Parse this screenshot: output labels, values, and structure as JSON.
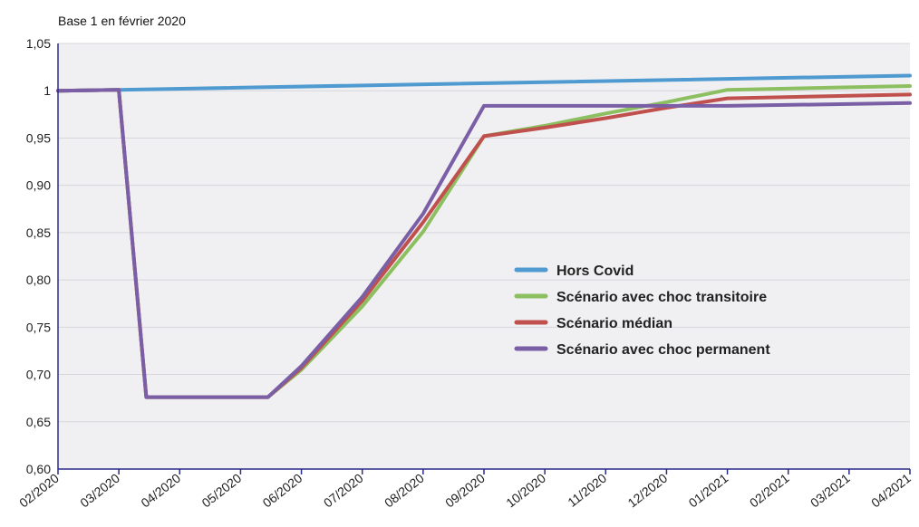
{
  "chart_data": {
    "type": "line",
    "subtitle": "Base 1 en février 2020",
    "x": [
      "02/2020",
      "03/2020",
      "04/2020",
      "05/2020",
      "06/2020",
      "07/2020",
      "08/2020",
      "09/2020",
      "10/2020",
      "11/2020",
      "12/2020",
      "01/2021",
      "02/2021",
      "03/2021",
      "04/2021"
    ],
    "y_ticks": [
      "0,60",
      "0,65",
      "0,70",
      "0,75",
      "0,80",
      "0,85",
      "0,90",
      "0,95",
      "1",
      "1,05"
    ],
    "ylim": [
      0.6,
      1.05
    ],
    "grid": "horizontal",
    "legend_position": "center-right",
    "series": [
      {
        "name": "Hors Covid",
        "color": "#4f9ad0",
        "points": [
          [
            0,
            1.0
          ],
          [
            1,
            1.001
          ],
          [
            14,
            1.016
          ]
        ]
      },
      {
        "name": "Scénario avec choc transitoire",
        "color": "#8cbf5f",
        "points": [
          [
            0,
            1.0
          ],
          [
            1,
            1.001
          ],
          [
            1.45,
            0.676
          ],
          [
            3.45,
            0.676
          ],
          [
            4,
            0.705
          ],
          [
            5,
            0.772
          ],
          [
            6,
            0.851
          ],
          [
            7,
            0.952
          ],
          [
            8,
            0.963
          ],
          [
            9,
            0.976
          ],
          [
            10,
            0.988
          ],
          [
            11,
            1.001
          ],
          [
            14,
            1.005
          ]
        ]
      },
      {
        "name": "Scénario médian",
        "color": "#c0504d",
        "points": [
          [
            0,
            1.0
          ],
          [
            1,
            1.001
          ],
          [
            1.45,
            0.676
          ],
          [
            3.45,
            0.676
          ],
          [
            4,
            0.707
          ],
          [
            5,
            0.778
          ],
          [
            6,
            0.861
          ],
          [
            7,
            0.952
          ],
          [
            8,
            0.961
          ],
          [
            9,
            0.971
          ],
          [
            10,
            0.982
          ],
          [
            11,
            0.992
          ],
          [
            14,
            0.996
          ]
        ]
      },
      {
        "name": "Scénario avec choc permanent",
        "color": "#7b5fa6",
        "points": [
          [
            0,
            1.0
          ],
          [
            1,
            1.001
          ],
          [
            1.45,
            0.676
          ],
          [
            3.45,
            0.676
          ],
          [
            4,
            0.709
          ],
          [
            5,
            0.782
          ],
          [
            6,
            0.87
          ],
          [
            7,
            0.984
          ],
          [
            8,
            0.984
          ],
          [
            9,
            0.984
          ],
          [
            10,
            0.984
          ],
          [
            11,
            0.984
          ],
          [
            14,
            0.987
          ]
        ]
      }
    ]
  }
}
